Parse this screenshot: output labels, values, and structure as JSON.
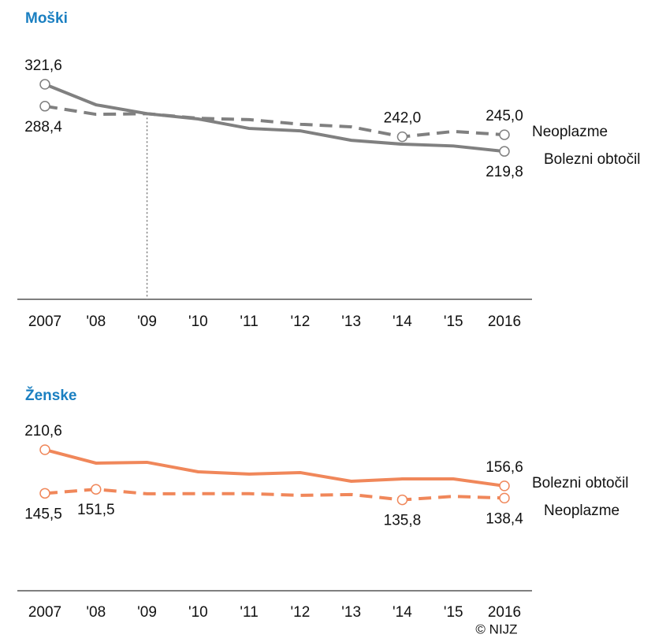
{
  "chart_data": [
    {
      "type": "line",
      "title": "Moški",
      "categories": [
        "2007",
        "'08",
        "'09",
        "'10",
        "'11",
        "'12",
        "'13",
        "'14",
        "'15",
        "2016"
      ],
      "ylim": [
        0,
        330
      ],
      "series": [
        {
          "name": "Bolezni obtočil",
          "color": "#808080",
          "dash": false,
          "values": [
            321.6,
            290.5,
            277,
            269,
            254.6,
            251,
            236.6,
            230.7,
            228,
            219.8
          ],
          "value_labels": [
            "321,6",
            null,
            null,
            null,
            null,
            null,
            null,
            null,
            null,
            "219,8"
          ]
        },
        {
          "name": "Neoplazme",
          "color": "#808080",
          "dash": true,
          "values": [
            288.4,
            276,
            277,
            270,
            268,
            261,
            257,
            242.0,
            250,
            245.0
          ],
          "value_labels": [
            "288,4",
            null,
            null,
            null,
            null,
            null,
            null,
            "242,0",
            null,
            "245,0"
          ]
        }
      ]
    },
    {
      "type": "line",
      "title": "Ženske",
      "categories": [
        "2007",
        "'08",
        "'09",
        "'10",
        "'11",
        "'12",
        "'13",
        "'14",
        "'15",
        "2016"
      ],
      "ylim": [
        0,
        220
      ],
      "series": [
        {
          "name": "Bolezni obtočil",
          "color": "#f0875a",
          "dash": false,
          "values": [
            210.6,
            190.6,
            191.8,
            177.7,
            174.2,
            176.5,
            163.6,
            167,
            167,
            156.6
          ],
          "value_labels": [
            "210,6",
            null,
            null,
            null,
            null,
            null,
            null,
            null,
            null,
            "156,6"
          ]
        },
        {
          "name": "Neoplazme",
          "color": "#f0875a",
          "dash": true,
          "values": [
            145.5,
            151.5,
            144.8,
            145,
            145,
            142.5,
            143.7,
            135.8,
            141,
            138.4
          ],
          "value_labels": [
            "145,5",
            "151,5",
            null,
            null,
            null,
            null,
            null,
            "135,8",
            null,
            "138,4"
          ]
        }
      ]
    }
  ],
  "footer": "© NIJZ"
}
